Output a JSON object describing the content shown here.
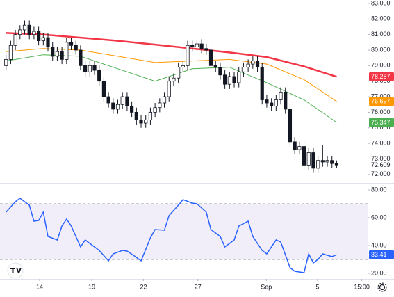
{
  "chart_data": [
    {
      "type": "candlestick",
      "xlim": [
        -1.3,
        77.8
      ],
      "ylim": [
        71.5,
        83.22
      ],
      "yticks": [
        {
          "value": 83,
          "label": "83.000"
        },
        {
          "value": 82,
          "label": "82.000"
        },
        {
          "value": 81,
          "label": "81.000"
        },
        {
          "value": 80,
          "label": "80.000"
        },
        {
          "value": 79,
          "label": "79.000"
        },
        {
          "value": 78,
          "label": "78.000"
        },
        {
          "value": 77,
          "label": "77.000"
        },
        {
          "value": 76,
          "label": "76.000"
        },
        {
          "value": 75,
          "label": "75.000"
        },
        {
          "value": 74,
          "label": "74.000"
        },
        {
          "value": 73,
          "label": "73.000"
        },
        {
          "value": 72,
          "label": "72.000"
        }
      ],
      "up_color": "#ffffff",
      "down_color": "#131722",
      "open": [
        79.0,
        79.4,
        80.3,
        81.0,
        81.3,
        81.6,
        81.0,
        81.2,
        80.6,
        80.8,
        80.2,
        79.6,
        79.9,
        79.4,
        80.5,
        80.3,
        80.0,
        79.0,
        78.6,
        79.0,
        78.7,
        78.0,
        77.0,
        76.6,
        76.2,
        76.5,
        77.0,
        76.4,
        76.0,
        75.5,
        75.3,
        75.5,
        76.0,
        76.3,
        76.6,
        77.0,
        78.0,
        78.2,
        78.9,
        79.0,
        80.3,
        80.2,
        80.4,
        80.1,
        80.0,
        79.0,
        78.9,
        78.4,
        77.8,
        78.3,
        77.9,
        78.6,
        78.9,
        79.1,
        79.3,
        78.9,
        76.8,
        76.6,
        76.4,
        76.8,
        77.3,
        76.2,
        74.1,
        73.6,
        73.8,
        72.6,
        73.4,
        72.4,
        72.9,
        72.8,
        72.9,
        72.7
      ],
      "high": [
        79.7,
        80.6,
        81.3,
        81.6,
        81.9,
        81.9,
        81.5,
        81.5,
        81.1,
        81.1,
        80.5,
        80.2,
        80.2,
        80.8,
        80.8,
        80.6,
        80.3,
        79.3,
        79.3,
        79.3,
        79.0,
        78.3,
        77.3,
        76.9,
        76.8,
        77.3,
        77.3,
        76.7,
        76.3,
        75.8,
        75.8,
        76.3,
        76.6,
        76.9,
        77.3,
        78.3,
        78.5,
        79.2,
        79.3,
        80.6,
        80.6,
        80.7,
        80.7,
        80.4,
        80.3,
        79.3,
        79.2,
        78.7,
        78.6,
        78.6,
        78.9,
        79.2,
        79.4,
        79.6,
        79.6,
        79.2,
        77.1,
        76.9,
        77.1,
        77.6,
        77.6,
        76.5,
        74.4,
        74.1,
        74.1,
        73.7,
        73.7,
        73.2,
        73.9,
        73.2,
        73.2,
        72.9
      ],
      "low": [
        78.7,
        79.1,
        80.0,
        80.7,
        81.0,
        80.7,
        80.7,
        80.3,
        80.3,
        79.9,
        79.3,
        79.3,
        79.1,
        79.1,
        80.0,
        79.7,
        78.7,
        78.3,
        78.3,
        78.4,
        77.7,
        76.7,
        76.3,
        75.9,
        75.9,
        76.2,
        76.1,
        75.7,
        75.2,
        75.0,
        75.0,
        75.2,
        75.7,
        76.0,
        76.3,
        76.7,
        77.7,
        77.9,
        78.6,
        78.7,
        79.9,
        79.9,
        79.8,
        79.7,
        78.7,
        78.6,
        78.1,
        77.5,
        77.5,
        77.6,
        77.6,
        78.3,
        78.6,
        78.8,
        78.6,
        76.5,
        76.3,
        76.1,
        76.1,
        76.5,
        75.9,
        73.8,
        73.3,
        73.3,
        72.3,
        72.3,
        72.1,
        72.1,
        72.5,
        72.5,
        72.4,
        72.4
      ],
      "close": [
        79.4,
        80.3,
        81.0,
        81.3,
        81.6,
        81.0,
        81.2,
        80.6,
        80.8,
        80.2,
        79.6,
        79.9,
        79.4,
        80.5,
        80.3,
        80.0,
        79.0,
        78.6,
        79.0,
        78.7,
        78.0,
        77.0,
        76.6,
        76.2,
        76.5,
        77.0,
        76.4,
        76.0,
        75.5,
        75.3,
        75.5,
        76.0,
        76.3,
        76.6,
        77.0,
        78.0,
        78.2,
        78.9,
        79.0,
        80.3,
        80.2,
        80.4,
        80.1,
        80.0,
        79.0,
        78.9,
        78.4,
        77.8,
        78.3,
        77.9,
        78.6,
        78.9,
        79.1,
        79.3,
        78.9,
        76.8,
        76.6,
        76.4,
        76.8,
        77.3,
        76.2,
        74.1,
        73.6,
        73.8,
        72.6,
        73.4,
        72.4,
        72.9,
        72.8,
        72.9,
        72.7,
        72.609
      ],
      "series": [
        {
          "color": "#f23645",
          "x": [
            0,
            8,
            16,
            24,
            32,
            40,
            48,
            56,
            64,
            71
          ],
          "values": [
            81.1,
            81.0,
            80.8,
            80.6,
            80.35,
            80.1,
            79.85,
            79.55,
            78.95,
            78.287
          ]
        },
        {
          "color": "#ff9800",
          "x": [
            0,
            8,
            16,
            24,
            32,
            40,
            48,
            56,
            64,
            71
          ],
          "values": [
            79.9,
            80.1,
            80.0,
            79.6,
            79.2,
            79.3,
            79.4,
            79.1,
            78.1,
            76.697
          ]
        },
        {
          "color": "#4caf50",
          "x": [
            0,
            8,
            16,
            24,
            32,
            40,
            48,
            56,
            64,
            71
          ],
          "values": [
            79.3,
            79.7,
            79.6,
            78.8,
            78.0,
            78.8,
            78.9,
            77.9,
            76.8,
            75.347
          ]
        }
      ]
    },
    {
      "type": "line",
      "xlim": [
        -1.3,
        77.8
      ],
      "ylim": [
        16.5,
        82.5
      ],
      "yticks": [
        {
          "value": 80,
          "label": "80.00"
        },
        {
          "value": 60,
          "label": "60.00"
        },
        {
          "value": 40,
          "label": "40.00"
        },
        {
          "value": 20,
          "label": "20.00"
        }
      ],
      "band": [
        30,
        70
      ],
      "color": "#2962ff",
      "x": [
        0,
        2,
        3,
        5,
        6,
        7,
        8,
        9,
        11,
        12,
        13,
        14,
        16,
        17,
        19,
        20,
        22,
        23,
        25,
        26,
        28,
        29,
        31,
        32,
        34,
        35,
        37,
        38,
        40,
        41,
        43,
        44,
        46,
        47,
        49,
        50,
        52,
        53,
        55,
        56,
        58,
        59,
        61,
        62,
        64,
        65,
        66,
        67,
        68,
        69,
        70,
        71
      ],
      "values": [
        64,
        71.5,
        74,
        69,
        57.5,
        58,
        64,
        46.5,
        44,
        54,
        59,
        54,
        39,
        44,
        39,
        36.5,
        29,
        34,
        36.5,
        36,
        31.5,
        29,
        45.5,
        51.5,
        51,
        61.5,
        69,
        73,
        70.5,
        70,
        64,
        51.5,
        46.5,
        39,
        44,
        54,
        57.5,
        46.5,
        36.5,
        34,
        44,
        42.5,
        24,
        21.5,
        20.5,
        34,
        27.5,
        30,
        34,
        33,
        32,
        33.41
      ],
      "xticks": [
        {
          "value": 7.2,
          "label": "14"
        },
        {
          "value": 18.4,
          "label": "19"
        },
        {
          "value": 29.5,
          "label": "22"
        },
        {
          "value": 41.2,
          "label": "27"
        },
        {
          "value": 55.9,
          "label": "Sep"
        },
        {
          "value": 66.9,
          "label": "5"
        },
        {
          "value": 76.4,
          "label": "15:00"
        }
      ]
    }
  ]
}
